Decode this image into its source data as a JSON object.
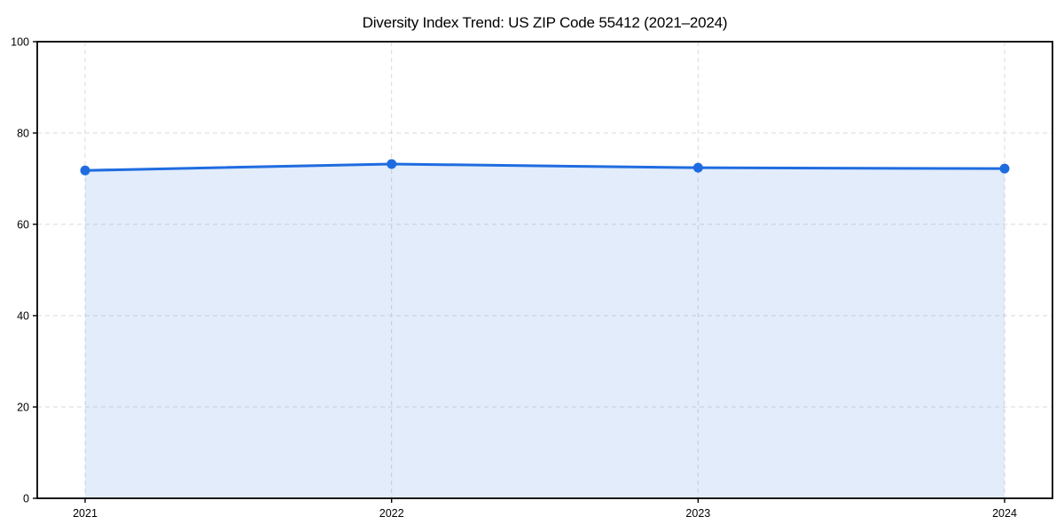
{
  "chart_data": {
    "type": "area",
    "title": "Diversity Index Trend: US ZIP Code 55412 (2021–2024)",
    "series_name": "Diversity Index",
    "categories": [
      "2021",
      "2022",
      "2023",
      "2024"
    ],
    "values": [
      71.8,
      73.2,
      72.4,
      72.2
    ],
    "xlabel": "",
    "ylabel": "",
    "ylim": [
      0,
      100
    ],
    "yticks": [
      0,
      20,
      40,
      60,
      80,
      100
    ],
    "grid": true,
    "legend": "none",
    "colors": {
      "line": "#1f6ce0",
      "marker": "#1f6ce0",
      "fill": "rgba(31,108,224,0.13)",
      "grid": "#d9d9d9",
      "axis": "#000000",
      "text": "#000000",
      "background": "#ffffff"
    }
  }
}
